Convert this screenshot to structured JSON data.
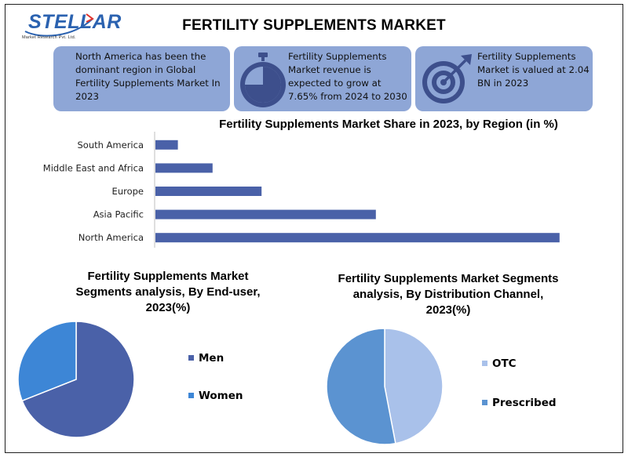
{
  "logo": {
    "word": "STELLAR",
    "sub": "Market Research Pvt. Ltd."
  },
  "title": "FERTILITY SUPPLEMENTS MARKET",
  "cards": [
    {
      "text": "North America has been the dominant region in Global Fertility Supplements Market In 2023",
      "icon": "none"
    },
    {
      "text": "Fertility Supplements Market revenue is expected to grow at 7.65% from 2024 to 2030",
      "icon": "stopwatch-icon"
    },
    {
      "text": "Fertility Supplements Market is valued at 2.04 BN in 2023",
      "icon": "target-icon"
    }
  ],
  "colors": {
    "bar": "#4a61a8",
    "card": "#8ea6d6",
    "men": "#4a61a8",
    "women": "#3d86d6",
    "otc": "#a9c1ea",
    "prescribed": "#5b93d1"
  },
  "chart_data": [
    {
      "type": "bar",
      "orientation": "horizontal",
      "title": "Fertility Supplements  Market Share in 2023, by Region (in %)",
      "categories": [
        "South America",
        "Middle East and Africa",
        "Europe",
        "Asia Pacific",
        "North America"
      ],
      "values": [
        5.5,
        14,
        26,
        54,
        99
      ],
      "xlim": [
        0,
        100
      ],
      "grid": false,
      "legend": "none"
    },
    {
      "type": "pie",
      "title": "Fertility Supplements  Market Segments analysis, By End-user, 2023(%)",
      "labels": [
        "Men",
        "Women"
      ],
      "values": [
        69,
        31
      ],
      "legend": "right"
    },
    {
      "type": "pie",
      "title": "Fertility Supplements  Market Segments analysis, By Distribution Channel, 2023(%)",
      "labels": [
        "OTC",
        "Prescribed"
      ],
      "values": [
        47,
        53
      ],
      "legend": "right"
    }
  ]
}
